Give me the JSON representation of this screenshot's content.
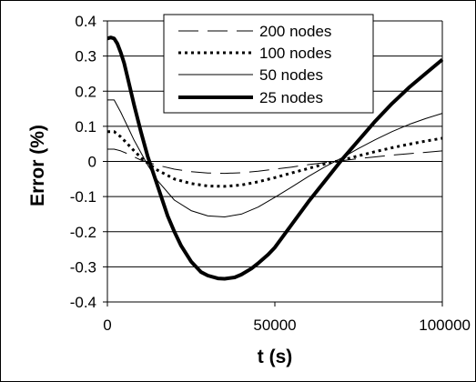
{
  "chart_data": {
    "type": "line",
    "xlabel": "t (s)",
    "ylabel": "Error (%)",
    "xlim": [
      0,
      100000
    ],
    "ylim": [
      -0.4,
      0.4
    ],
    "x_ticks": [
      0,
      50000,
      100000
    ],
    "x_tick_labels": [
      "0",
      "50000",
      "100000"
    ],
    "y_ticks": [
      0.4,
      0.3,
      0.2,
      0.1,
      0,
      -0.1,
      -0.2,
      -0.3,
      -0.4
    ],
    "y_tick_labels": [
      "0.4",
      "0.3",
      "0.2",
      "0.1",
      "0",
      "-0.1",
      "-0.2",
      "-0.3",
      "-0.4"
    ],
    "grid": "horizontal",
    "legend_position": "top-right",
    "series": [
      {
        "name": "200 nodes",
        "style": "long-dash",
        "x": [
          0,
          2000,
          4000,
          6000,
          8000,
          10000,
          12000,
          15000,
          20000,
          25000,
          30000,
          35000,
          40000,
          45000,
          50000,
          55000,
          60000,
          65000,
          70000,
          75000,
          80000,
          85000,
          90000,
          95000,
          100000
        ],
        "y": [
          0.035,
          0.035,
          0.03,
          0.022,
          0.013,
          0.004,
          -0.002,
          -0.011,
          -0.022,
          -0.029,
          -0.033,
          -0.034,
          -0.032,
          -0.028,
          -0.022,
          -0.016,
          -0.009,
          -0.003,
          0.002,
          0.008,
          0.013,
          0.018,
          0.022,
          0.026,
          0.03
        ]
      },
      {
        "name": "100 nodes",
        "style": "dotted",
        "x": [
          0,
          2000,
          4000,
          6000,
          8000,
          10000,
          12000,
          15000,
          20000,
          25000,
          30000,
          35000,
          40000,
          45000,
          50000,
          55000,
          60000,
          65000,
          70000,
          75000,
          80000,
          85000,
          90000,
          95000,
          100000
        ],
        "y": [
          0.085,
          0.085,
          0.07,
          0.05,
          0.03,
          0.011,
          -0.005,
          -0.025,
          -0.05,
          -0.063,
          -0.07,
          -0.071,
          -0.067,
          -0.058,
          -0.046,
          -0.033,
          -0.02,
          -0.007,
          0.004,
          0.016,
          0.028,
          0.039,
          0.049,
          0.058,
          0.066
        ]
      },
      {
        "name": "50 nodes",
        "style": "thin",
        "x": [
          0,
          2000,
          4000,
          6000,
          8000,
          10000,
          12000,
          15000,
          20000,
          25000,
          30000,
          35000,
          40000,
          45000,
          50000,
          55000,
          60000,
          65000,
          70000,
          75000,
          80000,
          85000,
          90000,
          95000,
          100000
        ],
        "y": [
          0.175,
          0.175,
          0.14,
          0.1,
          0.06,
          0.025,
          -0.01,
          -0.055,
          -0.11,
          -0.14,
          -0.155,
          -0.158,
          -0.15,
          -0.13,
          -0.102,
          -0.073,
          -0.043,
          -0.015,
          0.01,
          0.037,
          0.062,
          0.085,
          0.105,
          0.122,
          0.137
        ]
      },
      {
        "name": "25 nodes",
        "style": "thick",
        "x": [
          0,
          1000,
          2000,
          3000,
          4000,
          5000,
          6000,
          8000,
          10000,
          12000,
          15000,
          18000,
          20000,
          22000,
          25000,
          28000,
          30000,
          33000,
          35000,
          38000,
          40000,
          43000,
          45000,
          48000,
          50000,
          55000,
          60000,
          65000,
          70000,
          75000,
          80000,
          85000,
          90000,
          95000,
          100000
        ],
        "y": [
          0.35,
          0.353,
          0.35,
          0.335,
          0.31,
          0.28,
          0.24,
          0.16,
          0.085,
          0.015,
          -0.07,
          -0.155,
          -0.2,
          -0.24,
          -0.285,
          -0.315,
          -0.325,
          -0.333,
          -0.334,
          -0.33,
          -0.322,
          -0.305,
          -0.29,
          -0.265,
          -0.245,
          -0.18,
          -0.115,
          -0.055,
          0.005,
          0.06,
          0.115,
          0.165,
          0.21,
          0.25,
          0.29
        ]
      }
    ]
  }
}
